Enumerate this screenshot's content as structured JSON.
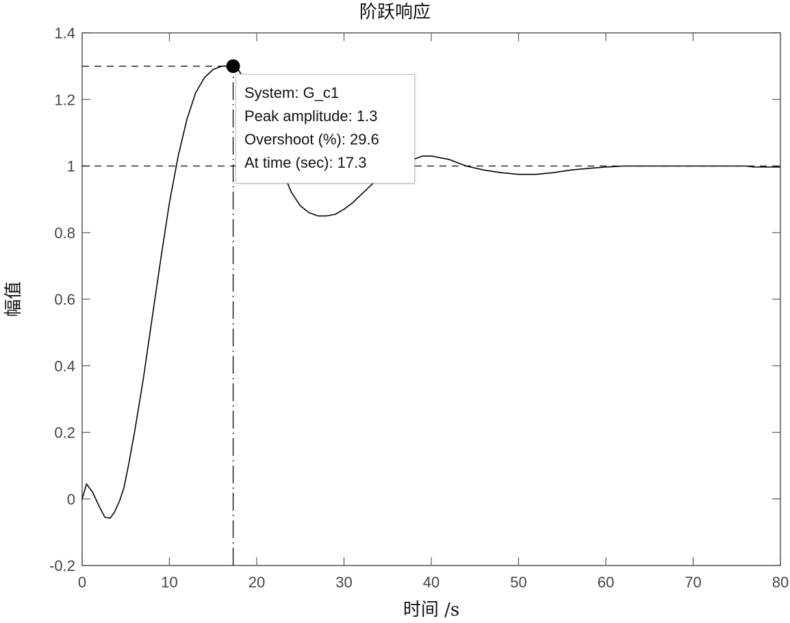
{
  "chart_data": {
    "type": "line",
    "title": "阶跃响应",
    "xlabel": "时间 /s",
    "ylabel": "幅值",
    "xlim": [
      0,
      80
    ],
    "ylim": [
      -0.2,
      1.4
    ],
    "xticks": [
      0,
      10,
      20,
      30,
      40,
      50,
      60,
      70,
      80
    ],
    "yticks": [
      -0.2,
      0,
      0.2,
      0.4,
      0.6,
      0.8,
      1,
      1.2,
      1.4
    ],
    "xtick_labels": [
      "0",
      "10",
      "20",
      "30",
      "40",
      "50",
      "60",
      "70",
      "80"
    ],
    "ytick_labels": [
      "-0.2",
      "0",
      "0.2",
      "0.4",
      "0.6",
      "0.8",
      "1",
      "1.2",
      "1.4"
    ],
    "grid": false,
    "series": [
      {
        "color": "#000000",
        "x": [
          0,
          0.5,
          1.2,
          2,
          2.6,
          3.2,
          3.7,
          4.3,
          4.8,
          5.3,
          6,
          7,
          8,
          9,
          10,
          11,
          12,
          13,
          14,
          15,
          16,
          17,
          17.3,
          18,
          19,
          20,
          21,
          22,
          23,
          24,
          25,
          26,
          27,
          28,
          29,
          30,
          31,
          32,
          33,
          34,
          35,
          36,
          37,
          38,
          39,
          40,
          42,
          44,
          46,
          48,
          50,
          52,
          54,
          56,
          58,
          60,
          62,
          64,
          66,
          68,
          70,
          72,
          74,
          76,
          77,
          78,
          80
        ],
        "y": [
          0,
          0.045,
          0.02,
          -0.025,
          -0.055,
          -0.058,
          -0.04,
          -0.005,
          0.035,
          0.1,
          0.2,
          0.36,
          0.54,
          0.72,
          0.89,
          1.03,
          1.14,
          1.22,
          1.265,
          1.29,
          1.3,
          1.3,
          1.3,
          1.285,
          1.24,
          1.18,
          1.11,
          1.04,
          0.98,
          0.92,
          0.88,
          0.86,
          0.85,
          0.85,
          0.855,
          0.87,
          0.89,
          0.915,
          0.94,
          0.965,
          0.985,
          1.0,
          1.01,
          1.02,
          1.03,
          1.03,
          1.02,
          1.0,
          0.988,
          0.98,
          0.975,
          0.975,
          0.98,
          0.988,
          0.993,
          0.997,
          1.0,
          1.0,
          1.0,
          1.0,
          1.0,
          1.0,
          1.0,
          1.0,
          0.997,
          0.997,
          0.997
        ]
      }
    ],
    "reference_lines": [
      {
        "style": "dashed",
        "orientation": "horizontal",
        "y": 1.0
      },
      {
        "style": "dashed",
        "orientation": "horizontal",
        "y": 1.3,
        "x_from": 0,
        "x_to": 17.3
      },
      {
        "style": "dashdot",
        "orientation": "vertical",
        "x": 17.3,
        "y_from": -0.2,
        "y_to": 1.3
      }
    ],
    "marker": {
      "x": 17.3,
      "y": 1.3,
      "shape": "circle",
      "color": "#000000"
    },
    "datatip": {
      "system": "System: G_c1",
      "peak": "Peak amplitude: 1.3",
      "overshoot": "Overshoot (%): 29.6",
      "time": "At time (sec): 17.3"
    }
  }
}
